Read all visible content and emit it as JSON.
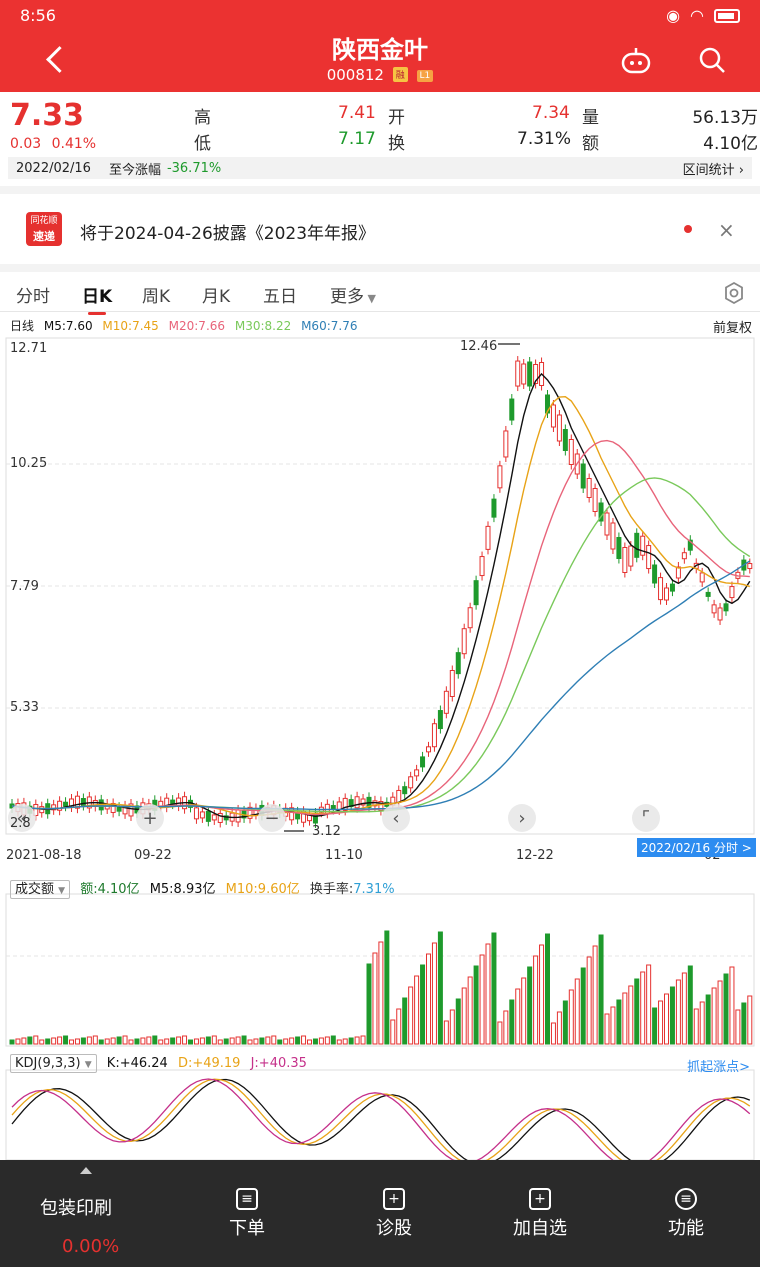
{
  "status": {
    "time": "8:56"
  },
  "header": {
    "name": "陕西金叶",
    "code": "000812",
    "tag1": "融",
    "tag2": "L1"
  },
  "quote": {
    "price": "7.33",
    "change": "0.03",
    "change_pct": "0.41%",
    "high_label": "高",
    "high": "7.41",
    "open_label": "开",
    "open": "7.34",
    "vol_label": "量",
    "vol": "56.13万",
    "low_label": "低",
    "low": "7.17",
    "turnover_label": "换",
    "turnover": "7.31%",
    "amount_label": "额",
    "amount": "4.10亿",
    "date": "2022/02/16",
    "since_label": "至今涨幅",
    "since_value": "-36.71%",
    "range_stats": "区间统计"
  },
  "notice": {
    "logo_line1": "同花顺",
    "logo_line2": "速递",
    "text": "将于2024-04-26披露《2023年年报》",
    "close": "×"
  },
  "tabs": [
    "分时",
    "日K",
    "周K",
    "月K",
    "五日",
    "更多"
  ],
  "ma": {
    "label": "日线",
    "m5": "M5:7.60",
    "m10": "M10:7.45",
    "m20": "M20:7.66",
    "m30": "M30:8.22",
    "m60": "M60:7.76",
    "adjust": "前复权"
  },
  "axis": {
    "y": [
      "12.71",
      "10.25",
      "7.79",
      "5.33",
      "2.8"
    ],
    "x": [
      "2021-08-18",
      "09-22",
      "11-10",
      "12-22",
      "02"
    ],
    "high_mark": "12.46",
    "low_mark": "3.12",
    "date_tag": "2022/02/16 分时 >"
  },
  "volume": {
    "selector": "成交额",
    "amount": "额:4.10亿",
    "m5": "M5:8.93亿",
    "m10": "M10:9.60亿",
    "turnover": "换手率:7.31%"
  },
  "kdj": {
    "selector": "KDJ(9,3,3)",
    "k": "K:+46.24",
    "d": "D:+49.19",
    "j": "J:+40.35",
    "link": "抓起涨点>"
  },
  "bottom": {
    "sector": "包装印刷",
    "sector_pct": "0.00%",
    "items": [
      "下单",
      "诊股",
      "加自选",
      "功能"
    ]
  },
  "colors": {
    "red": "#e5312f",
    "green": "#1e9a2c",
    "m5": "#111111",
    "m10": "#e8a317",
    "m20": "#e8647a",
    "m30": "#7ac95b",
    "m60": "#2f7fb5"
  }
}
